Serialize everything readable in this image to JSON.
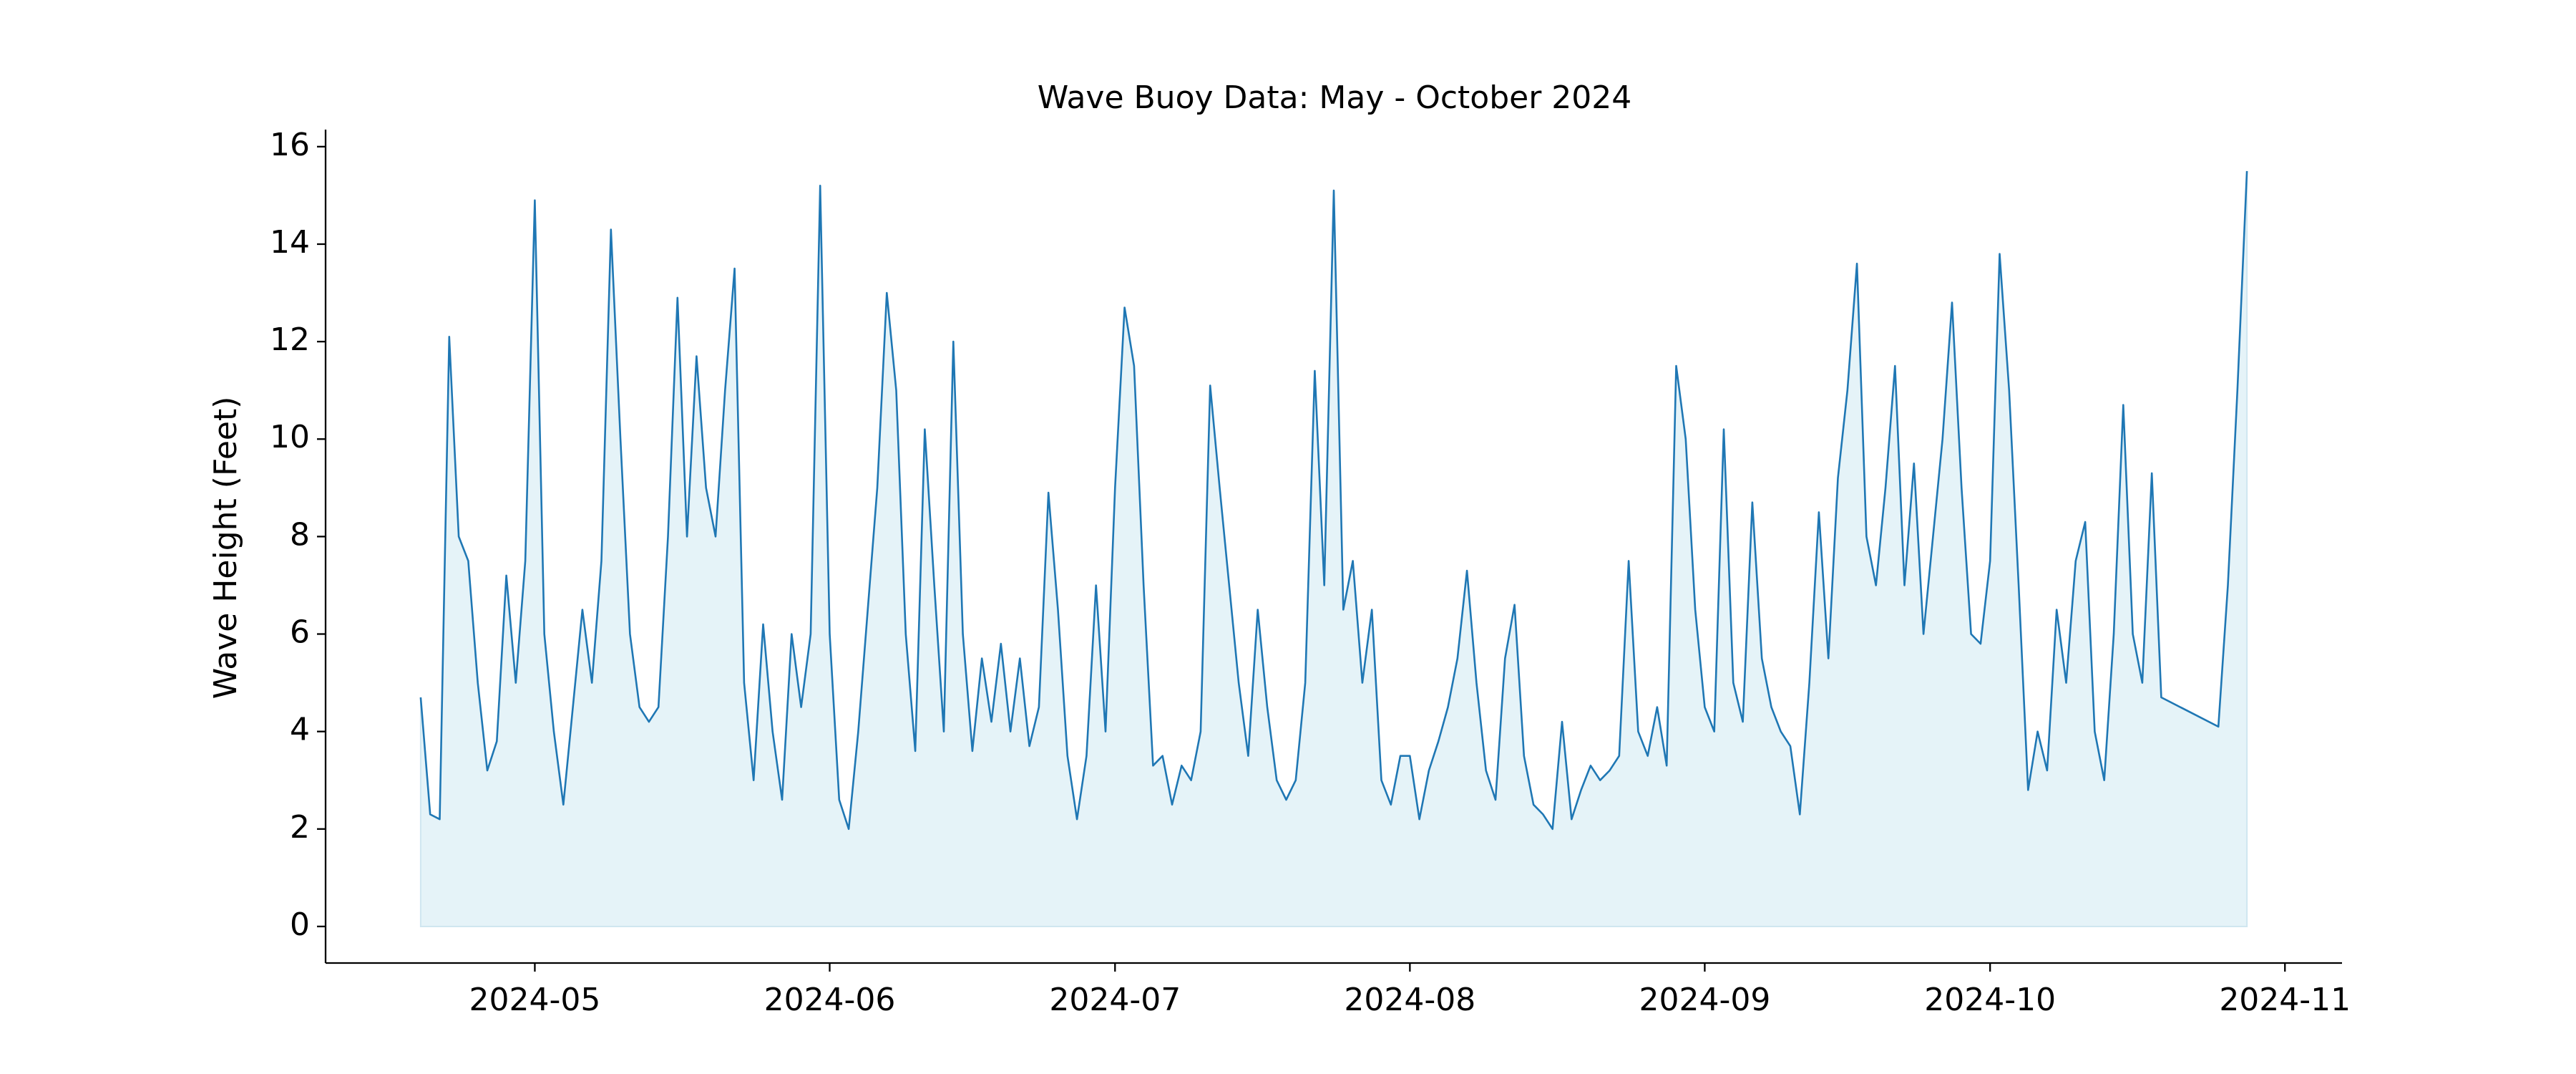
{
  "chart_data": {
    "type": "area_line",
    "title": "Wave Buoy Data: May - October 2024",
    "ylabel": "Wave Height (Feet)",
    "color": "#1f77b4",
    "fill_color": "#e5f3f8",
    "xlim": [
      "2024-04-09",
      "2024-11-07"
    ],
    "xticks": [
      {
        "value": "2024-05-01",
        "label": "2024-05"
      },
      {
        "value": "2024-06-01",
        "label": "2024-06"
      },
      {
        "value": "2024-07-01",
        "label": "2024-07"
      },
      {
        "value": "2024-08-01",
        "label": "2024-08"
      },
      {
        "value": "2024-09-01",
        "label": "2024-09"
      },
      {
        "value": "2024-10-01",
        "label": "2024-10"
      },
      {
        "value": "2024-11-01",
        "label": "2024-11"
      }
    ],
    "ylim": [
      -0.75,
      16.35
    ],
    "yticks": [
      0,
      2,
      4,
      6,
      8,
      10,
      12,
      14,
      16
    ],
    "x": [
      "2024-04-19",
      "2024-04-20",
      "2024-04-21",
      "2024-04-22",
      "2024-04-23",
      "2024-04-24",
      "2024-04-25",
      "2024-04-26",
      "2024-04-27",
      "2024-04-28",
      "2024-04-29",
      "2024-04-30",
      "2024-05-01",
      "2024-05-02",
      "2024-05-03",
      "2024-05-04",
      "2024-05-05",
      "2024-05-06",
      "2024-05-07",
      "2024-05-08",
      "2024-05-09",
      "2024-05-10",
      "2024-05-11",
      "2024-05-12",
      "2024-05-13",
      "2024-05-14",
      "2024-05-15",
      "2024-05-16",
      "2024-05-17",
      "2024-05-18",
      "2024-05-19",
      "2024-05-20",
      "2024-05-21",
      "2024-05-22",
      "2024-05-23",
      "2024-05-24",
      "2024-05-25",
      "2024-05-26",
      "2024-05-27",
      "2024-05-28",
      "2024-05-29",
      "2024-05-30",
      "2024-05-31",
      "2024-06-01",
      "2024-06-02",
      "2024-06-03",
      "2024-06-04",
      "2024-06-05",
      "2024-06-06",
      "2024-06-07",
      "2024-06-08",
      "2024-06-09",
      "2024-06-10",
      "2024-06-11",
      "2024-06-12",
      "2024-06-13",
      "2024-06-14",
      "2024-06-15",
      "2024-06-16",
      "2024-06-17",
      "2024-06-18",
      "2024-06-19",
      "2024-06-20",
      "2024-06-21",
      "2024-06-22",
      "2024-06-23",
      "2024-06-24",
      "2024-06-25",
      "2024-06-26",
      "2024-06-27",
      "2024-06-28",
      "2024-06-29",
      "2024-06-30",
      "2024-07-01",
      "2024-07-02",
      "2024-07-03",
      "2024-07-04",
      "2024-07-05",
      "2024-07-06",
      "2024-07-07",
      "2024-07-08",
      "2024-07-09",
      "2024-07-10",
      "2024-07-11",
      "2024-07-12",
      "2024-07-13",
      "2024-07-14",
      "2024-07-15",
      "2024-07-16",
      "2024-07-17",
      "2024-07-18",
      "2024-07-19",
      "2024-07-20",
      "2024-07-21",
      "2024-07-22",
      "2024-07-23",
      "2024-07-24",
      "2024-07-25",
      "2024-07-26",
      "2024-07-27",
      "2024-07-28",
      "2024-07-29",
      "2024-07-30",
      "2024-07-31",
      "2024-08-01",
      "2024-08-02",
      "2024-08-03",
      "2024-08-04",
      "2024-08-05",
      "2024-08-06",
      "2024-08-07",
      "2024-08-08",
      "2024-08-09",
      "2024-08-10",
      "2024-08-11",
      "2024-08-12",
      "2024-08-13",
      "2024-08-14",
      "2024-08-15",
      "2024-08-16",
      "2024-08-17",
      "2024-08-18",
      "2024-08-19",
      "2024-08-20",
      "2024-08-21",
      "2024-08-22",
      "2024-08-23",
      "2024-08-24",
      "2024-08-25",
      "2024-08-26",
      "2024-08-27",
      "2024-08-28",
      "2024-08-29",
      "2024-08-30",
      "2024-08-31",
      "2024-09-01",
      "2024-09-02",
      "2024-09-03",
      "2024-09-04",
      "2024-09-05",
      "2024-09-06",
      "2024-09-07",
      "2024-09-08",
      "2024-09-09",
      "2024-09-10",
      "2024-09-11",
      "2024-09-12",
      "2024-09-13",
      "2024-09-14",
      "2024-09-15",
      "2024-09-16",
      "2024-09-17",
      "2024-09-18",
      "2024-09-19",
      "2024-09-20",
      "2024-09-21",
      "2024-09-22",
      "2024-09-23",
      "2024-09-24",
      "2024-09-25",
      "2024-09-26",
      "2024-09-27",
      "2024-09-28",
      "2024-09-29",
      "2024-09-30",
      "2024-10-01",
      "2024-10-02",
      "2024-10-03",
      "2024-10-04",
      "2024-10-05",
      "2024-10-06",
      "2024-10-07",
      "2024-10-08",
      "2024-10-09",
      "2024-10-10",
      "2024-10-11",
      "2024-10-12",
      "2024-10-13",
      "2024-10-14",
      "2024-10-15",
      "2024-10-16",
      "2024-10-17",
      "2024-10-18",
      "2024-10-19",
      "2024-10-25",
      "2024-10-26",
      "2024-10-27",
      "2024-10-28"
    ],
    "values": [
      4.7,
      2.3,
      2.2,
      12.1,
      8,
      7.5,
      5,
      3.2,
      3.8,
      7.2,
      5,
      7.5,
      14.9,
      6,
      4,
      2.5,
      4.5,
      6.5,
      5,
      7.5,
      14.3,
      10,
      6,
      4.5,
      4.2,
      4.5,
      8,
      12.9,
      8,
      11.7,
      9,
      8,
      11,
      13.5,
      5,
      3,
      6.2,
      4,
      2.6,
      6,
      4.5,
      6,
      15.2,
      6,
      2.6,
      2,
      4,
      6.5,
      9,
      13,
      11,
      6,
      3.6,
      10.2,
      7,
      4,
      12,
      6,
      3.6,
      5.5,
      4.2,
      5.8,
      4,
      5.5,
      3.7,
      4.5,
      8.9,
      6.5,
      3.5,
      2.2,
      3.5,
      7,
      4,
      9,
      12.7,
      11.5,
      7,
      3.3,
      3.5,
      2.5,
      3.3,
      3,
      4,
      11.1,
      9,
      7,
      5,
      3.5,
      6.5,
      4.5,
      3,
      2.6,
      3,
      5,
      11.4,
      7,
      15.1,
      6.5,
      7.5,
      5,
      6.5,
      3,
      2.5,
      3.5,
      3.5,
      2.2,
      3.2,
      3.8,
      4.5,
      5.5,
      7.3,
      5,
      3.2,
      2.6,
      5.5,
      6.6,
      3.5,
      2.5,
      2.3,
      2,
      4.2,
      2.2,
      2.8,
      3.3,
      3,
      3.2,
      3.5,
      7.5,
      4,
      3.5,
      4.5,
      3.3,
      11.5,
      10,
      6.5,
      4.5,
      4,
      10.2,
      5,
      4.2,
      8.7,
      5.5,
      4.5,
      4,
      3.7,
      2.3,
      5,
      8.5,
      5.5,
      9.2,
      11,
      13.6,
      8,
      7,
      9,
      11.5,
      7,
      9.5,
      6,
      8,
      10,
      12.8,
      9,
      6,
      5.8,
      7.5,
      13.8,
      11,
      7,
      2.8,
      4,
      3.2,
      6.5,
      5,
      7.5,
      8.3,
      4,
      3,
      6,
      10.7,
      6,
      5,
      9.3,
      4.7,
      4.1,
      7,
      11,
      15.5
    ]
  }
}
